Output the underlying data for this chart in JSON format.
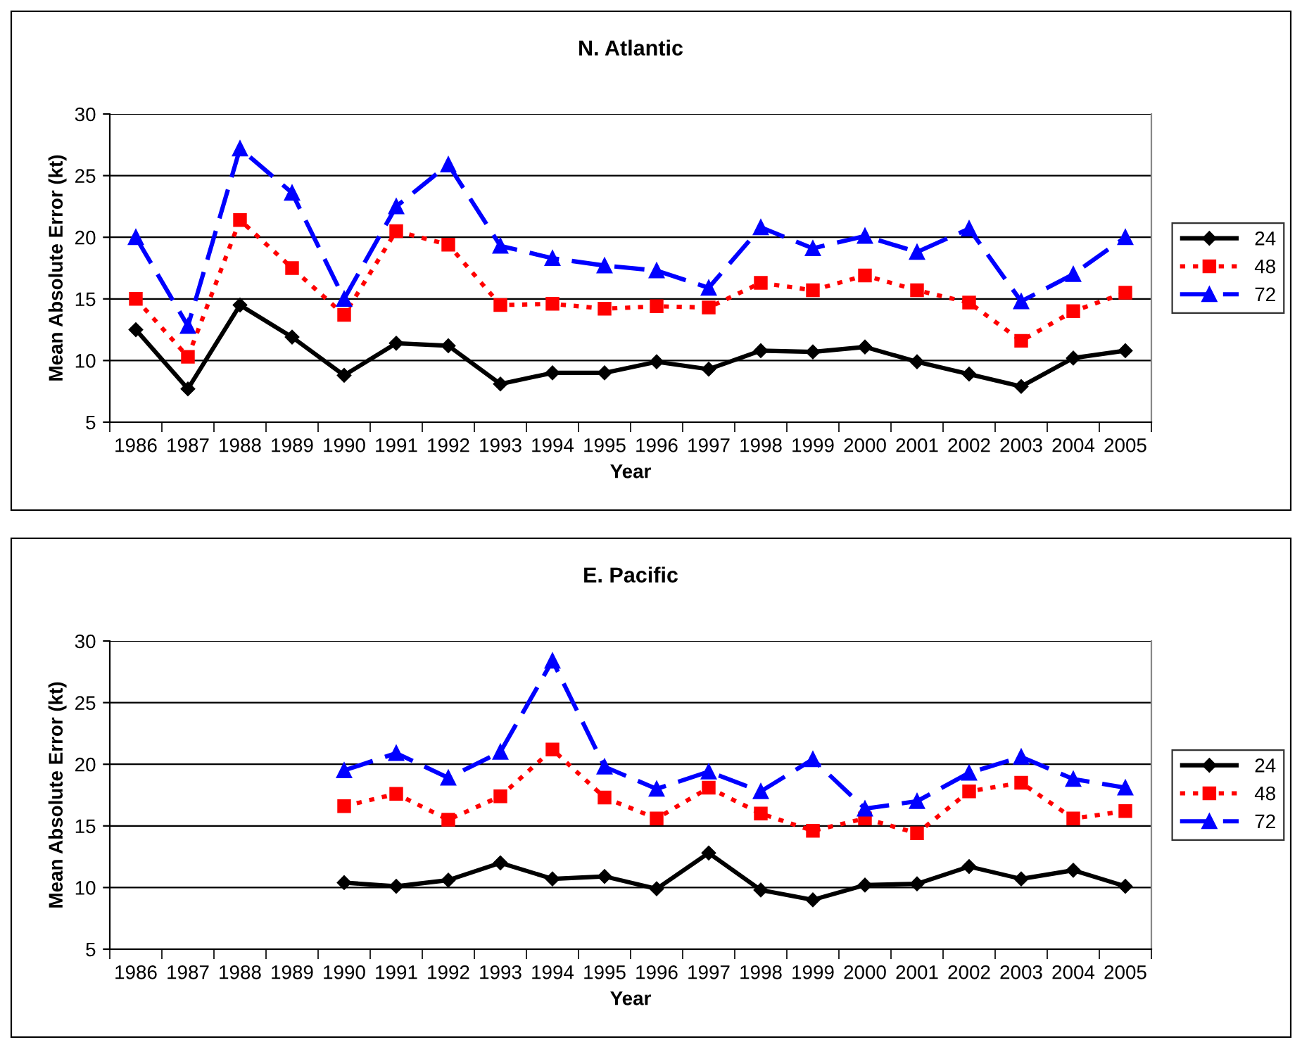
{
  "chart_data": [
    {
      "type": "line",
      "title": "N. Atlantic",
      "xlabel": "Year",
      "ylabel": "Mean Absolute Error (kt)",
      "categories": [
        "1986",
        "1987",
        "1988",
        "1989",
        "1990",
        "1991",
        "1992",
        "1993",
        "1994",
        "1995",
        "1996",
        "1997",
        "1998",
        "1999",
        "2000",
        "2001",
        "2002",
        "2003",
        "2004",
        "2005"
      ],
      "series": [
        {
          "name": "24",
          "color": "#000000",
          "marker": "diamond",
          "line_style": "solid",
          "values": [
            12.5,
            7.7,
            14.5,
            11.9,
            8.8,
            11.4,
            11.2,
            8.1,
            9.0,
            9.0,
            9.9,
            9.3,
            10.8,
            10.7,
            11.1,
            9.9,
            8.9,
            7.9,
            10.2,
            10.8
          ]
        },
        {
          "name": "48",
          "color": "#ff0000",
          "marker": "square",
          "line_style": "dotted",
          "values": [
            15.0,
            10.3,
            21.4,
            17.5,
            13.7,
            20.5,
            19.4,
            14.5,
            14.6,
            14.2,
            14.4,
            14.3,
            16.3,
            15.7,
            16.9,
            15.7,
            14.7,
            11.6,
            14.0,
            15.5
          ]
        },
        {
          "name": "72",
          "color": "#0000ff",
          "marker": "triangle",
          "line_style": "dashed",
          "values": [
            20.0,
            12.8,
            27.2,
            23.6,
            15.0,
            22.5,
            25.9,
            19.3,
            18.3,
            17.7,
            17.3,
            15.9,
            20.8,
            19.1,
            20.1,
            18.8,
            20.7,
            14.8,
            17.0,
            20.0
          ]
        }
      ],
      "ylim": [
        5,
        30
      ],
      "yticks": [
        5,
        10,
        15,
        20,
        25,
        30
      ],
      "grid": "y",
      "legend": "right"
    },
    {
      "type": "line",
      "title": "E. Pacific",
      "xlabel": "Year",
      "ylabel": "Mean Absolute Error (kt)",
      "categories": [
        "1986",
        "1987",
        "1988",
        "1989",
        "1990",
        "1991",
        "1992",
        "1993",
        "1994",
        "1995",
        "1996",
        "1997",
        "1998",
        "1999",
        "2000",
        "2001",
        "2002",
        "2003",
        "2004",
        "2005"
      ],
      "series": [
        {
          "name": "24",
          "color": "#000000",
          "marker": "diamond",
          "line_style": "solid",
          "values": [
            null,
            null,
            null,
            null,
            10.4,
            10.1,
            10.6,
            12.0,
            10.7,
            10.9,
            9.9,
            12.8,
            9.8,
            9.0,
            10.2,
            10.3,
            11.7,
            10.7,
            11.4,
            10.1
          ]
        },
        {
          "name": "48",
          "color": "#ff0000",
          "marker": "square",
          "line_style": "dotted",
          "values": [
            null,
            null,
            null,
            null,
            16.6,
            17.6,
            15.5,
            17.4,
            21.2,
            17.3,
            15.6,
            18.1,
            16.0,
            14.6,
            15.6,
            14.4,
            17.8,
            18.5,
            15.6,
            16.2
          ]
        },
        {
          "name": "72",
          "color": "#0000ff",
          "marker": "triangle",
          "line_style": "dashed",
          "values": [
            null,
            null,
            null,
            null,
            19.5,
            20.9,
            18.9,
            21.0,
            28.4,
            19.8,
            18.0,
            19.4,
            17.8,
            20.4,
            16.4,
            17.0,
            19.3,
            20.6,
            18.8,
            18.1
          ]
        }
      ],
      "ylim": [
        5,
        30
      ],
      "yticks": [
        5,
        10,
        15,
        20,
        25,
        30
      ],
      "grid": "y",
      "legend": "right"
    }
  ]
}
